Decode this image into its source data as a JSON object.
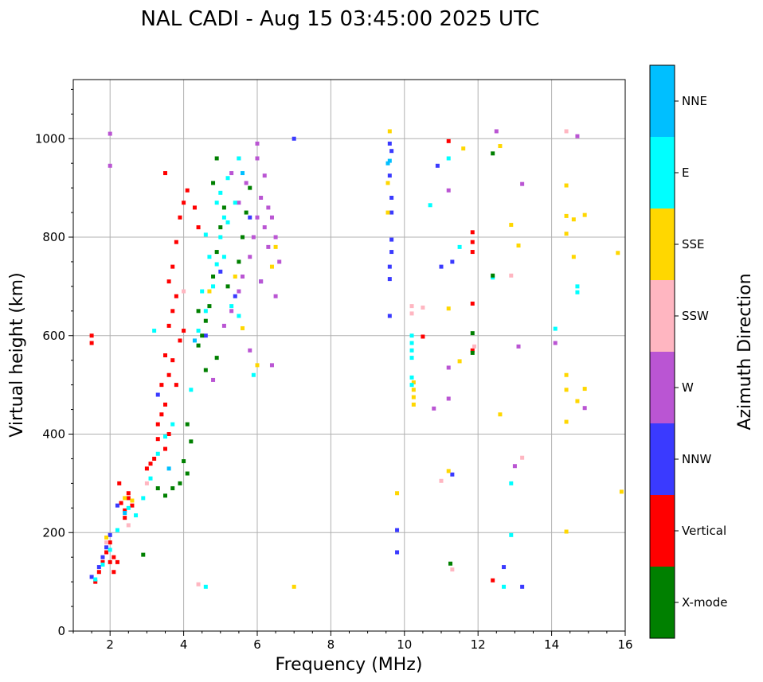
{
  "chart_data": {
    "type": "scatter",
    "title": "NAL CADI - Aug 15 03:45:00 2025 UTC",
    "xlabel": "Frequency (MHz)",
    "ylabel": "Virtual height (km)",
    "xlim": [
      1,
      16
    ],
    "ylim": [
      0,
      1120
    ],
    "xticks": [
      2,
      4,
      6,
      8,
      10,
      12,
      14,
      16
    ],
    "yticks": [
      0,
      200,
      400,
      600,
      800,
      1000
    ],
    "grid": true,
    "colorbar": {
      "title": "Azimuth Direction",
      "categories": [
        {
          "name": "NNE",
          "color": "#00bfff"
        },
        {
          "name": "E",
          "color": "#00ffff"
        },
        {
          "name": "SSE",
          "color": "#ffd700"
        },
        {
          "name": "SSW",
          "color": "#ffb6c1"
        },
        {
          "name": "W",
          "color": "#ba55d3"
        },
        {
          "name": "NNW",
          "color": "#3a3aff"
        },
        {
          "name": "Vertical",
          "color": "#ff0000"
        },
        {
          "name": "X-mode",
          "color": "#008000"
        }
      ]
    },
    "series": [
      {
        "name": "Vertical",
        "points": [
          [
            1.5,
            600
          ],
          [
            1.5,
            585
          ],
          [
            1.6,
            100
          ],
          [
            1.7,
            120
          ],
          [
            1.8,
            140
          ],
          [
            1.9,
            160
          ],
          [
            2.0,
            180
          ],
          [
            2.1,
            150
          ],
          [
            2.2,
            140
          ],
          [
            2.3,
            260
          ],
          [
            2.4,
            245
          ],
          [
            2.5,
            280
          ],
          [
            2.6,
            255
          ],
          [
            2.0,
            140
          ],
          [
            2.1,
            120
          ],
          [
            2.25,
            300
          ],
          [
            2.4,
            230
          ],
          [
            2.5,
            270
          ],
          [
            3.0,
            330
          ],
          [
            3.1,
            340
          ],
          [
            3.3,
            420
          ],
          [
            3.4,
            500
          ],
          [
            3.5,
            370
          ],
          [
            3.6,
            400
          ],
          [
            3.5,
            560
          ],
          [
            3.6,
            620
          ],
          [
            3.7,
            650
          ],
          [
            3.8,
            680
          ],
          [
            3.6,
            710
          ],
          [
            3.7,
            740
          ],
          [
            3.8,
            790
          ],
          [
            3.9,
            840
          ],
          [
            4.0,
            870
          ],
          [
            3.5,
            930
          ],
          [
            4.1,
            895
          ],
          [
            4.3,
            860
          ],
          [
            4.4,
            820
          ],
          [
            3.6,
            520
          ],
          [
            3.7,
            550
          ],
          [
            3.8,
            500
          ],
          [
            3.9,
            590
          ],
          [
            4.0,
            610
          ],
          [
            3.4,
            440
          ],
          [
            3.5,
            460
          ],
          [
            3.3,
            390
          ],
          [
            3.2,
            350
          ],
          [
            11.85,
            810
          ],
          [
            11.85,
            790
          ],
          [
            11.85,
            770
          ],
          [
            11.85,
            665
          ],
          [
            11.85,
            570
          ],
          [
            11.2,
            995
          ],
          [
            12.4,
            103
          ],
          [
            10.5,
            598
          ]
        ]
      },
      {
        "name": "NNW",
        "points": [
          [
            1.5,
            110
          ],
          [
            1.7,
            130
          ],
          [
            1.8,
            150
          ],
          [
            1.9,
            170
          ],
          [
            2.0,
            195
          ],
          [
            2.2,
            255
          ],
          [
            3.3,
            480
          ],
          [
            4.6,
            600
          ],
          [
            5.0,
            730
          ],
          [
            5.4,
            680
          ],
          [
            5.8,
            840
          ],
          [
            6.1,
            710
          ],
          [
            9.6,
            990
          ],
          [
            9.65,
            975
          ],
          [
            9.6,
            925
          ],
          [
            9.65,
            880
          ],
          [
            9.65,
            850
          ],
          [
            9.65,
            795
          ],
          [
            9.65,
            770
          ],
          [
            9.6,
            740
          ],
          [
            9.6,
            715
          ],
          [
            9.6,
            640
          ],
          [
            9.8,
            205
          ],
          [
            9.8,
            160
          ],
          [
            10.9,
            945
          ],
          [
            11.0,
            740
          ],
          [
            11.3,
            750
          ],
          [
            11.3,
            318
          ],
          [
            12.7,
            130
          ],
          [
            13.2,
            90
          ],
          [
            7.0,
            1000
          ]
        ]
      },
      {
        "name": "W",
        "points": [
          [
            2.0,
            1010
          ],
          [
            2.0,
            945
          ],
          [
            5.1,
            620
          ],
          [
            5.3,
            650
          ],
          [
            5.5,
            690
          ],
          [
            5.6,
            720
          ],
          [
            5.8,
            760
          ],
          [
            5.9,
            800
          ],
          [
            6.0,
            840
          ],
          [
            6.1,
            880
          ],
          [
            6.2,
            820
          ],
          [
            6.3,
            780
          ],
          [
            6.4,
            840
          ],
          [
            6.5,
            800
          ],
          [
            6.6,
            750
          ],
          [
            6.5,
            680
          ],
          [
            5.5,
            870
          ],
          [
            5.7,
            910
          ],
          [
            6.0,
            960
          ],
          [
            6.0,
            990
          ],
          [
            6.2,
            925
          ],
          [
            6.3,
            860
          ],
          [
            5.3,
            930
          ],
          [
            5.5,
            960
          ],
          [
            4.8,
            510
          ],
          [
            5.8,
            570
          ],
          [
            6.1,
            710
          ],
          [
            6.4,
            540
          ],
          [
            11.2,
            895
          ],
          [
            11.2,
            535
          ],
          [
            11.2,
            472
          ],
          [
            10.8,
            452
          ],
          [
            13.2,
            908
          ],
          [
            13.1,
            578
          ],
          [
            13.0,
            335
          ],
          [
            14.1,
            585
          ],
          [
            14.7,
            1005
          ],
          [
            14.9,
            453
          ],
          [
            12.5,
            1015
          ]
        ]
      },
      {
        "name": "SSW",
        "points": [
          [
            1.9,
            180
          ],
          [
            2.5,
            215
          ],
          [
            3.0,
            300
          ],
          [
            4.0,
            690
          ],
          [
            4.4,
            95
          ],
          [
            10.2,
            660
          ],
          [
            10.2,
            645
          ],
          [
            10.5,
            657
          ],
          [
            11.0,
            305
          ],
          [
            11.3,
            125
          ],
          [
            12.9,
            722
          ],
          [
            13.2,
            352
          ],
          [
            14.4,
            1015
          ],
          [
            11.9,
            578
          ]
        ]
      },
      {
        "name": "SSE",
        "points": [
          [
            1.9,
            190
          ],
          [
            2.4,
            270
          ],
          [
            2.6,
            265
          ],
          [
            4.7,
            690
          ],
          [
            5.4,
            720
          ],
          [
            5.6,
            615
          ],
          [
            6.0,
            540
          ],
          [
            6.4,
            740
          ],
          [
            6.5,
            780
          ],
          [
            7.0,
            90
          ],
          [
            9.6,
            1015
          ],
          [
            9.55,
            910
          ],
          [
            9.55,
            850
          ],
          [
            9.8,
            280
          ],
          [
            10.25,
            505
          ],
          [
            10.25,
            490
          ],
          [
            10.25,
            475
          ],
          [
            10.25,
            460
          ],
          [
            11.2,
            655
          ],
          [
            11.2,
            325
          ],
          [
            11.5,
            548
          ],
          [
            11.6,
            980
          ],
          [
            12.6,
            985
          ],
          [
            12.6,
            440
          ],
          [
            12.9,
            825
          ],
          [
            13.1,
            783
          ],
          [
            14.4,
            905
          ],
          [
            14.4,
            843
          ],
          [
            14.4,
            807
          ],
          [
            14.6,
            836
          ],
          [
            14.9,
            845
          ],
          [
            14.6,
            760
          ],
          [
            14.4,
            520
          ],
          [
            14.4,
            490
          ],
          [
            14.7,
            467
          ],
          [
            14.9,
            492
          ],
          [
            14.4,
            425
          ],
          [
            14.4,
            202
          ],
          [
            15.9,
            283
          ],
          [
            15.8,
            768
          ]
        ]
      },
      {
        "name": "E",
        "points": [
          [
            1.6,
            105
          ],
          [
            1.8,
            135
          ],
          [
            2.0,
            165
          ],
          [
            2.2,
            205
          ],
          [
            2.5,
            250
          ],
          [
            2.7,
            235
          ],
          [
            2.9,
            270
          ],
          [
            3.1,
            310
          ],
          [
            3.3,
            360
          ],
          [
            3.5,
            395
          ],
          [
            3.7,
            420
          ],
          [
            4.5,
            690
          ],
          [
            4.7,
            760
          ],
          [
            4.8,
            700
          ],
          [
            5.0,
            800
          ],
          [
            5.1,
            760
          ],
          [
            5.2,
            830
          ],
          [
            5.4,
            870
          ],
          [
            5.0,
            890
          ],
          [
            5.2,
            920
          ],
          [
            5.5,
            960
          ],
          [
            4.6,
            805
          ],
          [
            4.9,
            745
          ],
          [
            5.3,
            660
          ],
          [
            5.5,
            640
          ],
          [
            4.4,
            610
          ],
          [
            4.6,
            650
          ],
          [
            4.9,
            870
          ],
          [
            5.1,
            840
          ],
          [
            4.6,
            90
          ],
          [
            3.2,
            610
          ],
          [
            4.2,
            490
          ],
          [
            5.9,
            520
          ],
          [
            10.2,
            600
          ],
          [
            10.2,
            585
          ],
          [
            10.2,
            570
          ],
          [
            10.2,
            555
          ],
          [
            10.2,
            515
          ],
          [
            10.2,
            500
          ],
          [
            10.7,
            865
          ],
          [
            11.2,
            960
          ],
          [
            11.5,
            780
          ],
          [
            12.4,
            718
          ],
          [
            12.7,
            90
          ],
          [
            12.9,
            195
          ],
          [
            12.9,
            300
          ],
          [
            14.1,
            614
          ],
          [
            14.7,
            700
          ],
          [
            14.7,
            688
          ]
        ]
      },
      {
        "name": "NNE",
        "points": [
          [
            2.4,
            240
          ],
          [
            3.6,
            330
          ],
          [
            4.3,
            590
          ],
          [
            5.6,
            930
          ],
          [
            9.55,
            950
          ],
          [
            9.6,
            955
          ]
        ]
      },
      {
        "name": "X-mode",
        "points": [
          [
            2.9,
            155
          ],
          [
            3.3,
            290
          ],
          [
            3.5,
            275
          ],
          [
            3.7,
            290
          ],
          [
            3.9,
            300
          ],
          [
            4.1,
            320
          ],
          [
            4.0,
            345
          ],
          [
            4.2,
            385
          ],
          [
            4.1,
            420
          ],
          [
            4.4,
            580
          ],
          [
            4.5,
            600
          ],
          [
            4.6,
            630
          ],
          [
            4.7,
            660
          ],
          [
            4.8,
            720
          ],
          [
            4.9,
            770
          ],
          [
            5.0,
            820
          ],
          [
            5.1,
            860
          ],
          [
            4.8,
            910
          ],
          [
            4.9,
            960
          ],
          [
            5.2,
            700
          ],
          [
            5.5,
            750
          ],
          [
            5.6,
            800
          ],
          [
            5.7,
            850
          ],
          [
            5.8,
            900
          ],
          [
            4.4,
            650
          ],
          [
            4.6,
            530
          ],
          [
            4.9,
            555
          ],
          [
            11.25,
            137
          ],
          [
            11.85,
            605
          ],
          [
            11.85,
            565
          ],
          [
            12.4,
            970
          ],
          [
            12.4,
            722
          ]
        ]
      }
    ]
  }
}
